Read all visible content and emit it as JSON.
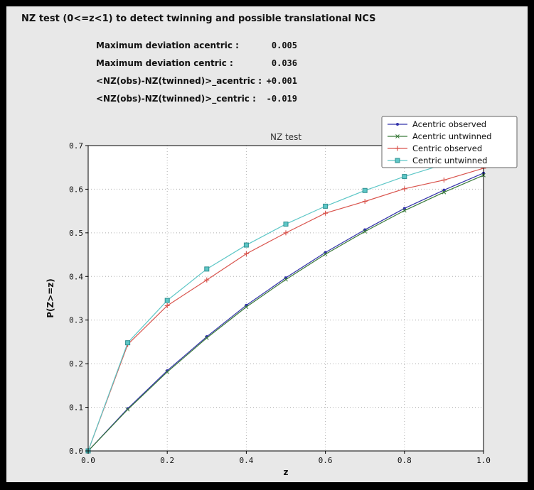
{
  "window": {
    "title": "NZ test (0<=z<1) to detect twinning and possible translational NCS"
  },
  "stats": [
    {
      "label": "Maximum deviation acentric :",
      "value": "0.005"
    },
    {
      "label": "Maximum deviation centric :",
      "value": "0.036"
    },
    {
      "label": "<NZ(obs)-NZ(twinned)>_acentric :",
      "value": "+0.001"
    },
    {
      "label": "<NZ(obs)-NZ(twinned)>_centric :",
      "value": "-0.019"
    }
  ],
  "colors": {
    "frame": "#000000",
    "panel": "#e8e8e8",
    "plot_background": "#ffffff",
    "grid": "#b0b0b0",
    "axis": "#000000"
  },
  "chart_data": {
    "type": "line",
    "title": "NZ test",
    "xlabel": "z",
    "ylabel": "P(Z>=z)",
    "xlim": [
      0.0,
      1.0
    ],
    "ylim": [
      0.0,
      0.7
    ],
    "grid": true,
    "legend_position": "upper-right",
    "xticks": [
      0.0,
      0.2,
      0.4,
      0.6,
      0.8,
      1.0
    ],
    "xtick_labels": [
      "0.0",
      "0.2",
      "0.4",
      "0.6",
      "0.8",
      "1.0"
    ],
    "yticks": [
      0.0,
      0.1,
      0.2,
      0.3,
      0.4,
      0.5,
      0.6,
      0.7
    ],
    "ytick_labels": [
      "0.0",
      "0.1",
      "0.2",
      "0.3",
      "0.4",
      "0.5",
      "0.6",
      "0.7"
    ],
    "x": [
      0.0,
      0.1,
      0.2,
      0.3,
      0.4,
      0.5,
      0.6,
      0.7,
      0.8,
      0.9,
      1.0
    ],
    "series": [
      {
        "name": "Acentric observed",
        "color": "#3333aa",
        "marker": "dot",
        "values": [
          0.0,
          0.097,
          0.184,
          0.262,
          0.334,
          0.397,
          0.455,
          0.507,
          0.556,
          0.598,
          0.637
        ]
      },
      {
        "name": "Acentric untwinned",
        "color": "#3a7a3a",
        "marker": "x",
        "values": [
          0.0,
          0.095,
          0.181,
          0.259,
          0.33,
          0.393,
          0.451,
          0.503,
          0.551,
          0.593,
          0.632
        ]
      },
      {
        "name": "Centric observed",
        "color": "#d9544d",
        "marker": "plus",
        "values": [
          0.0,
          0.244,
          0.333,
          0.392,
          0.452,
          0.5,
          0.545,
          0.572,
          0.601,
          0.621,
          0.648
        ]
      },
      {
        "name": "Centric untwinned",
        "color": "#5ec7c7",
        "marker": "square",
        "marker_edge": "#2f8f8f",
        "values": [
          0.0,
          0.248,
          0.345,
          0.417,
          0.472,
          0.52,
          0.561,
          0.597,
          0.629,
          0.657,
          0.683
        ]
      }
    ]
  }
}
